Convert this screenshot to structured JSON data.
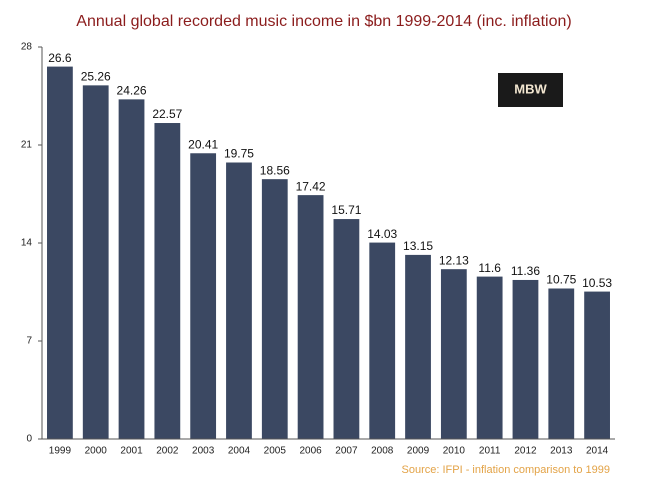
{
  "chart_data": {
    "type": "bar",
    "title": "Annual global recorded music income in $bn 1999-2014 (inc. inflation)",
    "logo": "MBW",
    "source": "Source: IFPI - inflation comparison to 1999",
    "categories": [
      "1999",
      "2000",
      "2001",
      "2002",
      "2003",
      "2004",
      "2005",
      "2006",
      "2007",
      "2008",
      "2009",
      "2010",
      "2011",
      "2012",
      "2013",
      "2014"
    ],
    "values": [
      26.6,
      25.26,
      24.26,
      22.57,
      20.41,
      19.75,
      18.56,
      17.42,
      15.71,
      14.03,
      13.15,
      12.13,
      11.6,
      11.36,
      10.75,
      10.53
    ],
    "color": "#3b4862",
    "ylim": [
      0,
      28
    ],
    "yticks": [
      0,
      7,
      14,
      21,
      28
    ],
    "grid": false
  }
}
